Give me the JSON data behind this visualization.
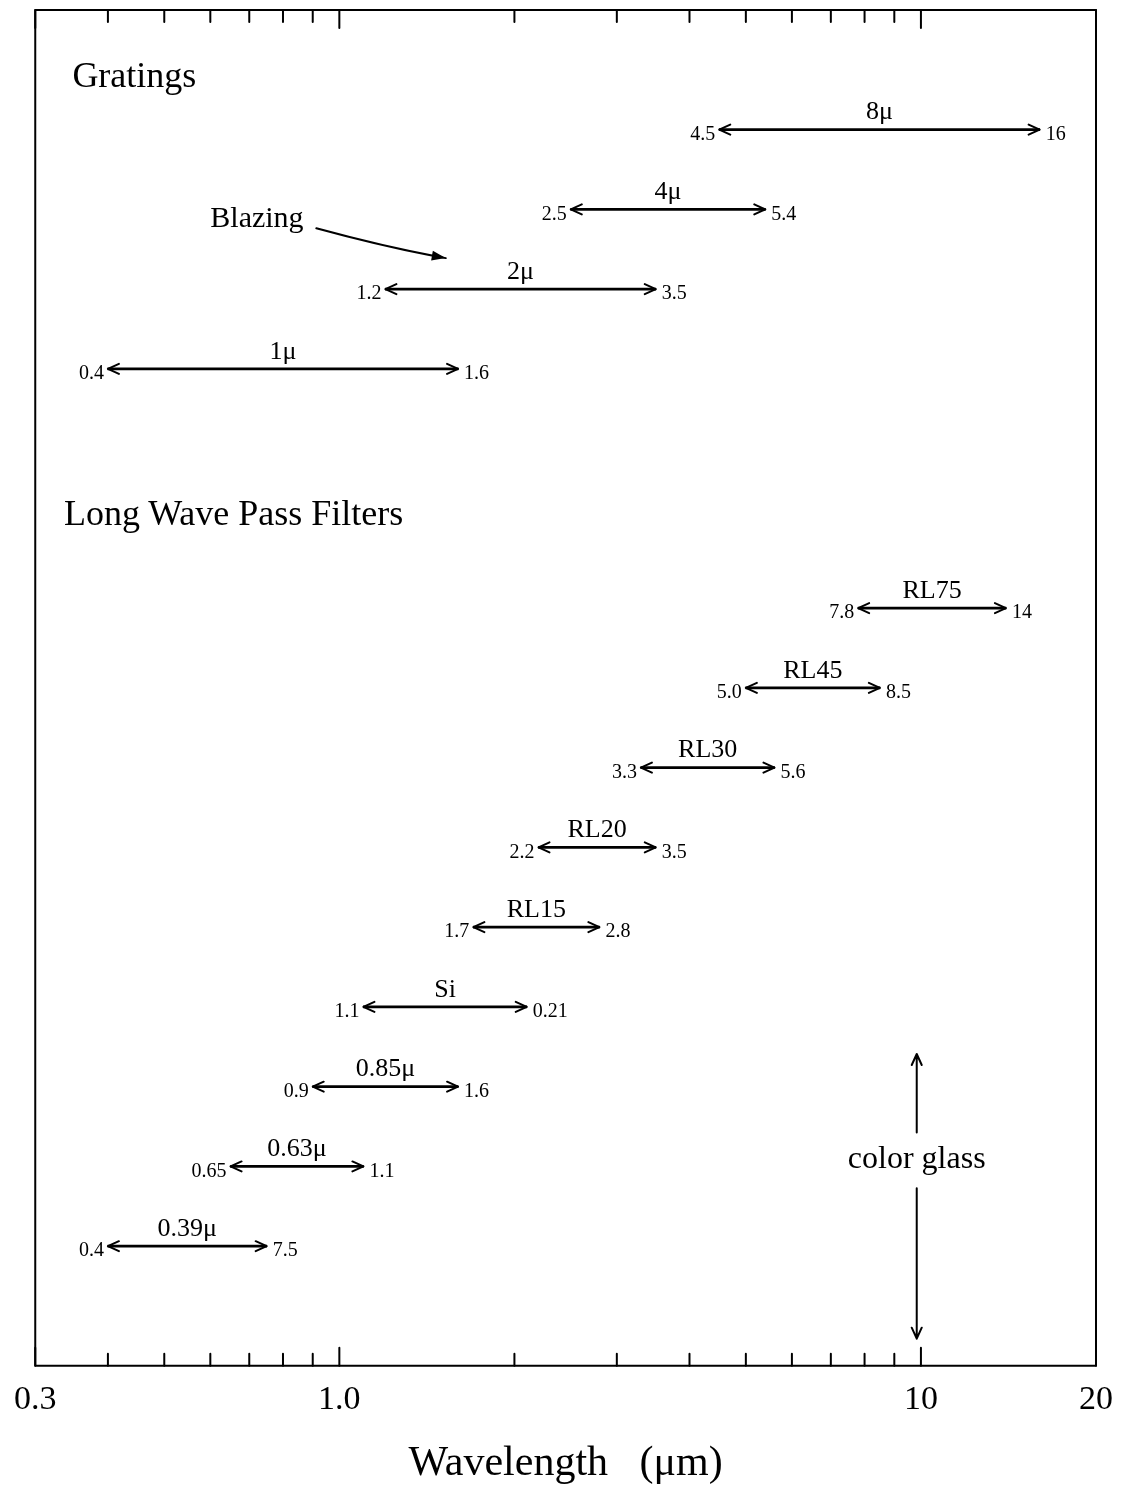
{
  "chart_data": {
    "type": "bar",
    "orientation": "horizontal",
    "log": "x",
    "color": "#000000",
    "grid": false,
    "legend": false,
    "categories": [
      null,
      "8μ",
      "4μ",
      "2μ",
      "1μ",
      null,
      null,
      "RL75",
      "RL45",
      "RL30",
      "RL20",
      "RL15",
      "Si",
      "0.85μ",
      "0.63μ",
      "0.39μ",
      null
    ],
    "base": [
      null,
      4.5,
      2.5,
      1.2,
      0.4,
      null,
      null,
      7.8,
      5.0,
      3.3,
      2.2,
      1.7,
      1.1,
      0.9,
      0.65,
      0.4,
      null
    ],
    "values": [
      null,
      11.5,
      2.9,
      2.3,
      1.2,
      null,
      null,
      6.2,
      3.5,
      2.3,
      1.3,
      1.1,
      1.0,
      0.7,
      0.45,
      0.35,
      null
    ],
    "xlim": [
      0.3,
      20
    ],
    "xticks": [
      0.3,
      {
        "value": 0.4,
        "label": null
      },
      {
        "value": 0.5,
        "label": null
      },
      {
        "value": 0.6,
        "label": null
      },
      {
        "value": 0.7,
        "label": null
      },
      {
        "value": 0.8,
        "label": null
      },
      {
        "value": 0.9,
        "label": null
      },
      {
        "value": 1,
        "label": "1.0"
      },
      {
        "value": 2,
        "label": null
      },
      {
        "value": 3,
        "label": null
      },
      {
        "value": 4,
        "label": null
      },
      {
        "value": 5,
        "label": null
      },
      {
        "value": 6,
        "label": null
      },
      {
        "value": 7,
        "label": null
      },
      {
        "value": 8,
        "label": null
      },
      {
        "value": 9,
        "label": null
      },
      10,
      20
    ],
    "xlabel": "Wavelength   (μm)",
    "annotations": [
      "Gratings",
      "Blazing",
      "Long Wave Pass Filters",
      "color glass",
      "4.5",
      "16",
      "2.5",
      "5.4",
      "1.2",
      "3.5",
      "0.4",
      "1.6",
      "7.8",
      "14",
      "5.0",
      "8.5",
      "3.3",
      "5.6",
      "2.2",
      "3.5",
      "1.7",
      "2.8",
      "1.1",
      "0.21",
      "0.9",
      "1.6",
      "0.65",
      "1.1",
      "0.4",
      "7.5"
    ]
  }
}
